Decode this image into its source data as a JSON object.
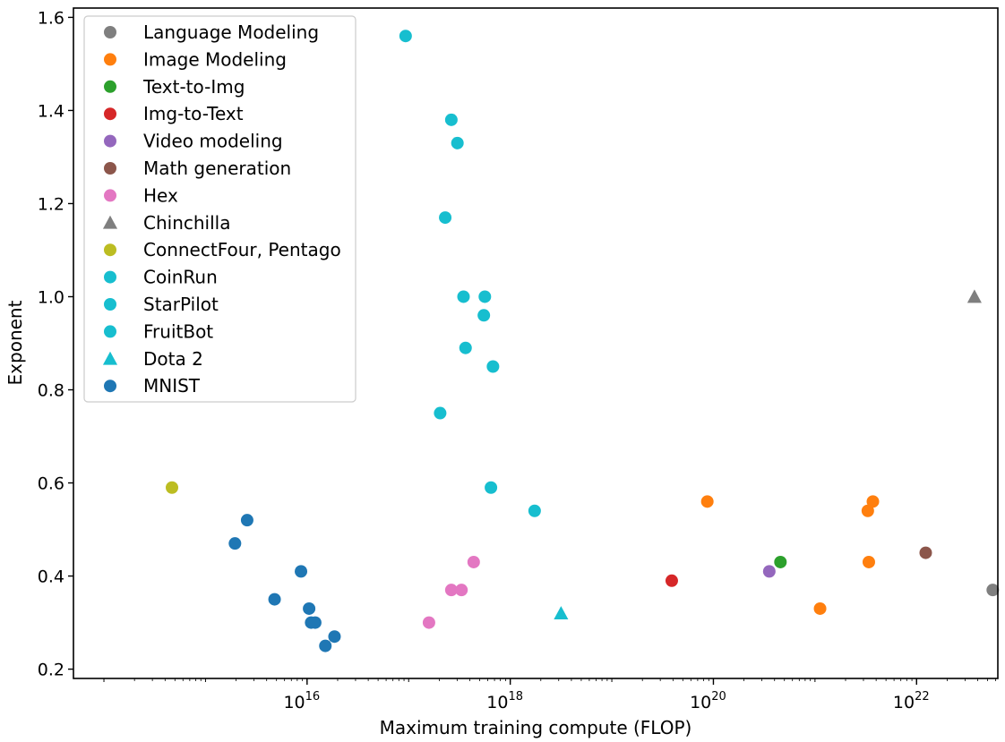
{
  "chart_data": {
    "type": "scatter",
    "title": "",
    "xlabel": "Maximum training compute (FLOP)",
    "ylabel": "Exponent",
    "xscale": "log",
    "xlim_log10": [
      13.7,
      22.8
    ],
    "ylim": [
      0.18,
      1.62
    ],
    "x_ticks": [
      {
        "base": "10",
        "exp": "16",
        "log10": 16
      },
      {
        "base": "10",
        "exp": "18",
        "log10": 18
      },
      {
        "base": "10",
        "exp": "20",
        "log10": 20
      },
      {
        "base": "10",
        "exp": "22",
        "log10": 22
      }
    ],
    "y_ticks": [
      "0.2",
      "0.4",
      "0.6",
      "0.8",
      "1.0",
      "1.2",
      "1.4",
      "1.6"
    ],
    "legend_position": "top-left",
    "series": [
      {
        "name": "Language Modeling",
        "color": "#7f7f7f",
        "marker": "circle",
        "points": [
          [
            22.75,
            0.37
          ]
        ]
      },
      {
        "name": "Image Modeling",
        "color": "#ff7f0e",
        "marker": "circle",
        "points": [
          [
            19.94,
            0.56
          ],
          [
            21.05,
            0.33
          ],
          [
            21.52,
            0.54
          ],
          [
            21.57,
            0.56
          ],
          [
            21.53,
            0.43
          ]
        ]
      },
      {
        "name": "Text-to-Img",
        "color": "#2ca02c",
        "marker": "circle",
        "points": [
          [
            20.66,
            0.43
          ]
        ]
      },
      {
        "name": "Img-to-Text",
        "color": "#d62728",
        "marker": "circle",
        "points": [
          [
            19.59,
            0.39
          ]
        ]
      },
      {
        "name": "Video modeling",
        "color": "#9467bd",
        "marker": "circle",
        "points": [
          [
            20.55,
            0.41
          ]
        ]
      },
      {
        "name": "Math generation",
        "color": "#8c564b",
        "marker": "circle",
        "points": [
          [
            22.09,
            0.45
          ]
        ]
      },
      {
        "name": "Hex",
        "color": "#e377c2",
        "marker": "circle",
        "points": [
          [
            17.2,
            0.3
          ],
          [
            17.42,
            0.37
          ],
          [
            17.52,
            0.37
          ],
          [
            17.64,
            0.43
          ]
        ]
      },
      {
        "name": "Chinchilla",
        "color": "#7f7f7f",
        "marker": "triangle",
        "points": [
          [
            22.57,
            1.0
          ]
        ]
      },
      {
        "name": "ConnectFour, Pentago",
        "color": "#bcbd22",
        "marker": "circle",
        "points": [
          [
            14.67,
            0.59
          ]
        ]
      },
      {
        "name": "CoinRun",
        "color": "#17becf",
        "marker": "circle",
        "points": [
          [
            16.97,
            1.56
          ],
          [
            17.42,
            1.38
          ],
          [
            17.48,
            1.33
          ],
          [
            17.36,
            1.17
          ],
          [
            17.54,
            1.0
          ],
          [
            17.75,
            1.0
          ],
          [
            17.74,
            0.96
          ]
        ]
      },
      {
        "name": "StarPilot",
        "color": "#17becf",
        "marker": "circle",
        "points": [
          [
            17.56,
            0.89
          ],
          [
            17.83,
            0.85
          ],
          [
            17.31,
            0.75
          ]
        ]
      },
      {
        "name": "FruitBot",
        "color": "#17becf",
        "marker": "circle",
        "points": [
          [
            17.81,
            0.59
          ],
          [
            18.24,
            0.54
          ]
        ]
      },
      {
        "name": "Dota 2",
        "color": "#17becf",
        "marker": "triangle",
        "points": [
          [
            18.5,
            0.32
          ]
        ]
      },
      {
        "name": "MNIST",
        "color": "#1f77b4",
        "marker": "circle",
        "points": [
          [
            15.29,
            0.47
          ],
          [
            15.41,
            0.52
          ],
          [
            15.68,
            0.35
          ],
          [
            15.94,
            0.41
          ],
          [
            16.02,
            0.33
          ],
          [
            16.04,
            0.3
          ],
          [
            16.08,
            0.3
          ],
          [
            16.18,
            0.25
          ],
          [
            16.27,
            0.27
          ]
        ]
      }
    ]
  }
}
